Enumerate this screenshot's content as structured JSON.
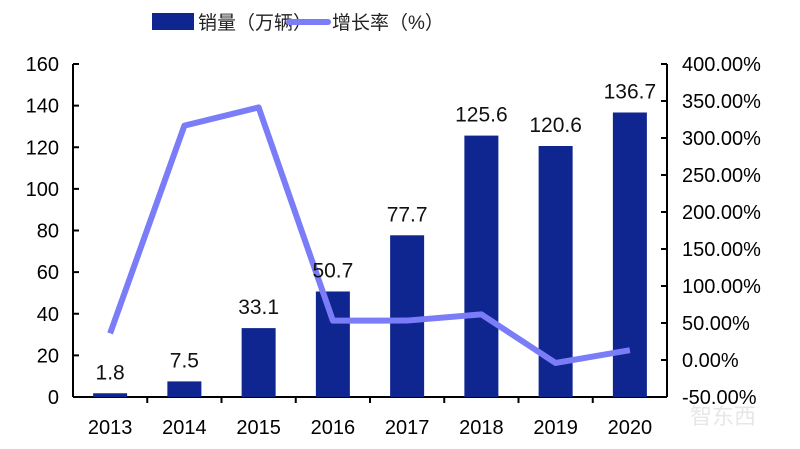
{
  "chart_data": {
    "type": "bar",
    "categories": [
      "2013",
      "2014",
      "2015",
      "2016",
      "2017",
      "2018",
      "2019",
      "2020"
    ],
    "series": [
      {
        "name": "销量（万辆）",
        "type": "bar",
        "axis": "left",
        "color": "#0f258f",
        "values": [
          1.8,
          7.5,
          33.1,
          50.7,
          77.7,
          125.6,
          120.6,
          136.7
        ],
        "labels": [
          "1.8",
          "7.5",
          "33.1",
          "50.7",
          "77.7",
          "125.6",
          "120.6",
          "136.7"
        ]
      },
      {
        "name": "增长率（%）",
        "type": "line",
        "axis": "right",
        "color": "#7b7cf7",
        "values": [
          36,
          316.7,
          341.3,
          53.2,
          53.3,
          61.6,
          -4.0,
          13.3
        ]
      }
    ],
    "left_axis": {
      "ylim": [
        0,
        160
      ],
      "ticks": [
        "0",
        "20",
        "40",
        "60",
        "80",
        "100",
        "120",
        "140",
        "160"
      ]
    },
    "right_axis": {
      "ylim": [
        -50,
        400
      ],
      "ticks": [
        "-50.00%",
        "0.00%",
        "50.00%",
        "100.00%",
        "150.00%",
        "200.00%",
        "250.00%",
        "300.00%",
        "350.00%",
        "400.00%"
      ]
    },
    "legend": {
      "position": "top",
      "items": [
        "销量（万辆）",
        "增长率（%）"
      ]
    },
    "grid": false,
    "watermark": "智东西"
  }
}
